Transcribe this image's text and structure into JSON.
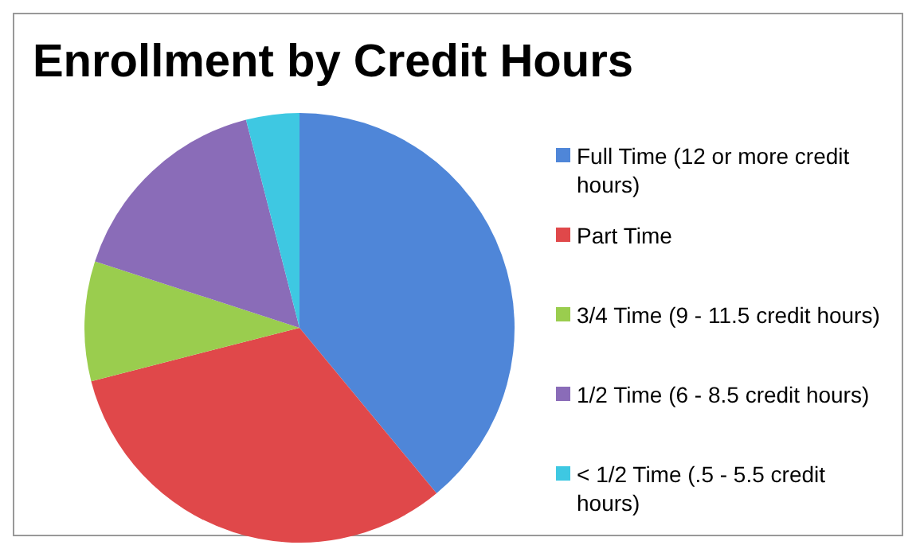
{
  "chart_data": {
    "type": "pie",
    "title": "Enrollment by Credit Hours",
    "categories": [
      "Full Time (12 or more credit hours)",
      "Part Time",
      "3/4 Time (9 - 11.5 credit hours)",
      "1/2 Time (6 - 8.5 credit hours)",
      "< 1/2 Time (.5 - 5.5 credit hours)"
    ],
    "values": [
      39,
      32,
      9,
      16,
      4
    ],
    "colors": [
      "#4f86d8",
      "#e0484a",
      "#9acd4e",
      "#8a6cb8",
      "#3ec8e2"
    ],
    "legend": "right"
  }
}
